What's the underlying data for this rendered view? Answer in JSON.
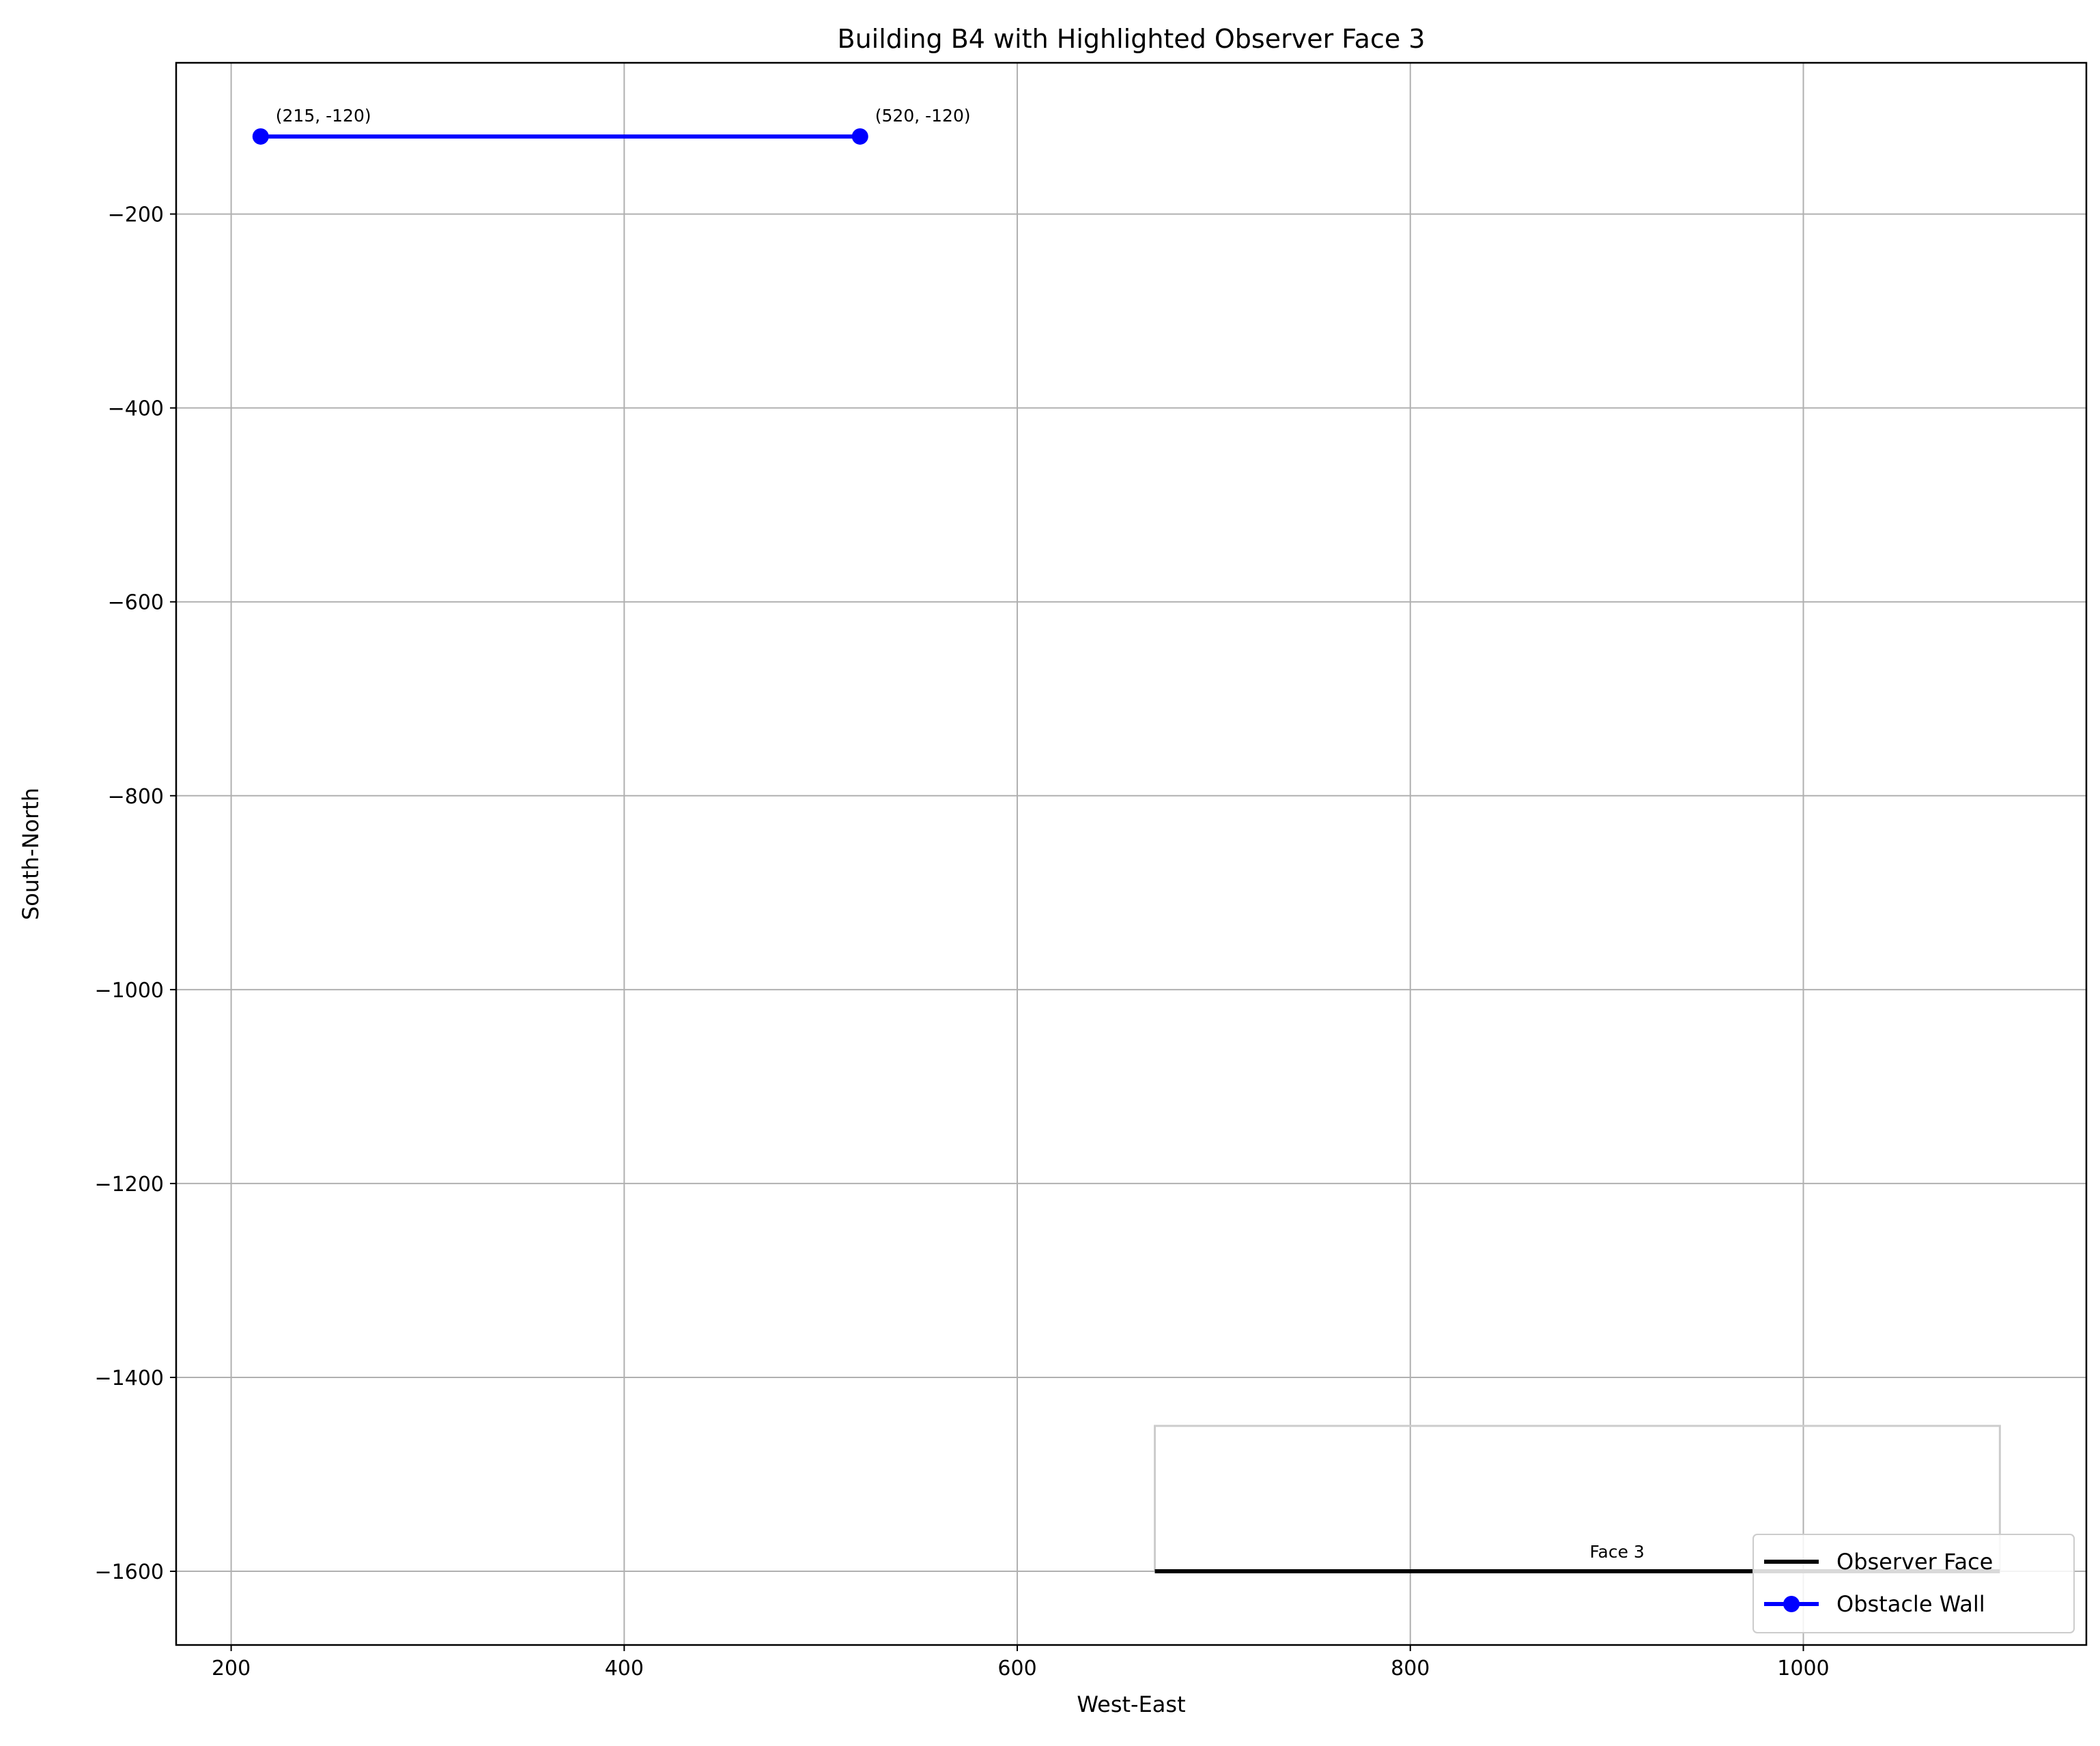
{
  "chart_data": {
    "type": "line",
    "title": "Building B4 with Highlighted Observer Face 3",
    "xlabel": "West-East",
    "ylabel": "South-North",
    "xlim": [
      172,
      1144
    ],
    "ylim": [
      -1676,
      -44
    ],
    "xticks": [
      200,
      400,
      600,
      800,
      1000
    ],
    "yticks": [
      -200,
      -400,
      -600,
      -800,
      -1000,
      -1200,
      -1400,
      -1600
    ],
    "xtick_labels": [
      "200",
      "400",
      "600",
      "800",
      "1000"
    ],
    "ytick_labels": [
      "−200",
      "−400",
      "−600",
      "−800",
      "−1000",
      "−1200",
      "−1400",
      "−1600"
    ],
    "grid": true,
    "legend_position": "lower right",
    "series": [
      {
        "name": "Observer Face",
        "color": "#000000",
        "marker": "none",
        "x": [
          670,
          1100
        ],
        "y": [
          -1600,
          -1600
        ]
      },
      {
        "name": "Obstacle Wall",
        "color": "#0000ff",
        "marker": "circle",
        "x": [
          215,
          520
        ],
        "y": [
          -120,
          -120
        ]
      }
    ],
    "building_outline": {
      "color": "#cccccc",
      "x": [
        670,
        670,
        1100,
        1100
      ],
      "y": [
        -1600,
        -1450,
        -1450,
        -1600
      ]
    },
    "annotations": [
      {
        "text": "(215, -120)",
        "x": 215,
        "y": -120
      },
      {
        "text": "(520, -120)",
        "x": 520,
        "y": -120
      },
      {
        "text": "Face 3",
        "x": 885,
        "y": -1600
      }
    ]
  }
}
